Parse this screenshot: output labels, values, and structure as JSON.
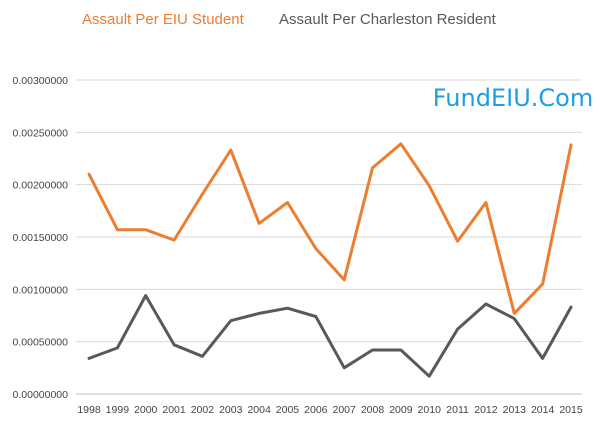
{
  "chart_data": {
    "type": "line",
    "title": "",
    "xlabel": "",
    "ylabel": "",
    "categories": [
      "1998",
      "1999",
      "2000",
      "2001",
      "2002",
      "2003",
      "2004",
      "2005",
      "2006",
      "2007",
      "2008",
      "2009",
      "2010",
      "2011",
      "2012",
      "2013",
      "2014",
      "2015"
    ],
    "series": [
      {
        "name": "Assault Per EIU Student",
        "color": "#ed7d31",
        "values": [
          0.0021,
          0.00157,
          0.00157,
          0.00147,
          0.00191,
          0.00233,
          0.00163,
          0.00183,
          0.00139,
          0.00109,
          0.00216,
          0.00239,
          0.00199,
          0.00146,
          0.00183,
          0.00077,
          0.00105,
          0.00238
        ]
      },
      {
        "name": "Assault Per Charleston Resident",
        "color": "#595959",
        "values": [
          0.00034,
          0.00044,
          0.00094,
          0.00047,
          0.00036,
          0.0007,
          0.00077,
          0.00082,
          0.00074,
          0.00025,
          0.00042,
          0.00042,
          0.00017,
          0.00062,
          0.00086,
          0.00072,
          0.00034,
          0.00083
        ]
      }
    ],
    "ylim": [
      0,
      0.003
    ],
    "yticks": [
      "0.00000000",
      "0.00050000",
      "0.00100000",
      "0.00150000",
      "0.00200000",
      "0.00250000",
      "0.00300000"
    ],
    "ytick_values": [
      0,
      0.0005,
      0.001,
      0.0015,
      0.002,
      0.0025,
      0.003
    ],
    "grid": true,
    "legend_position": "top",
    "gridline_color": "#d9d9d9",
    "axis_color": "#bfbfbf"
  },
  "watermark": {
    "text": "FundEIU.Com",
    "color": "#1e9ee3"
  }
}
